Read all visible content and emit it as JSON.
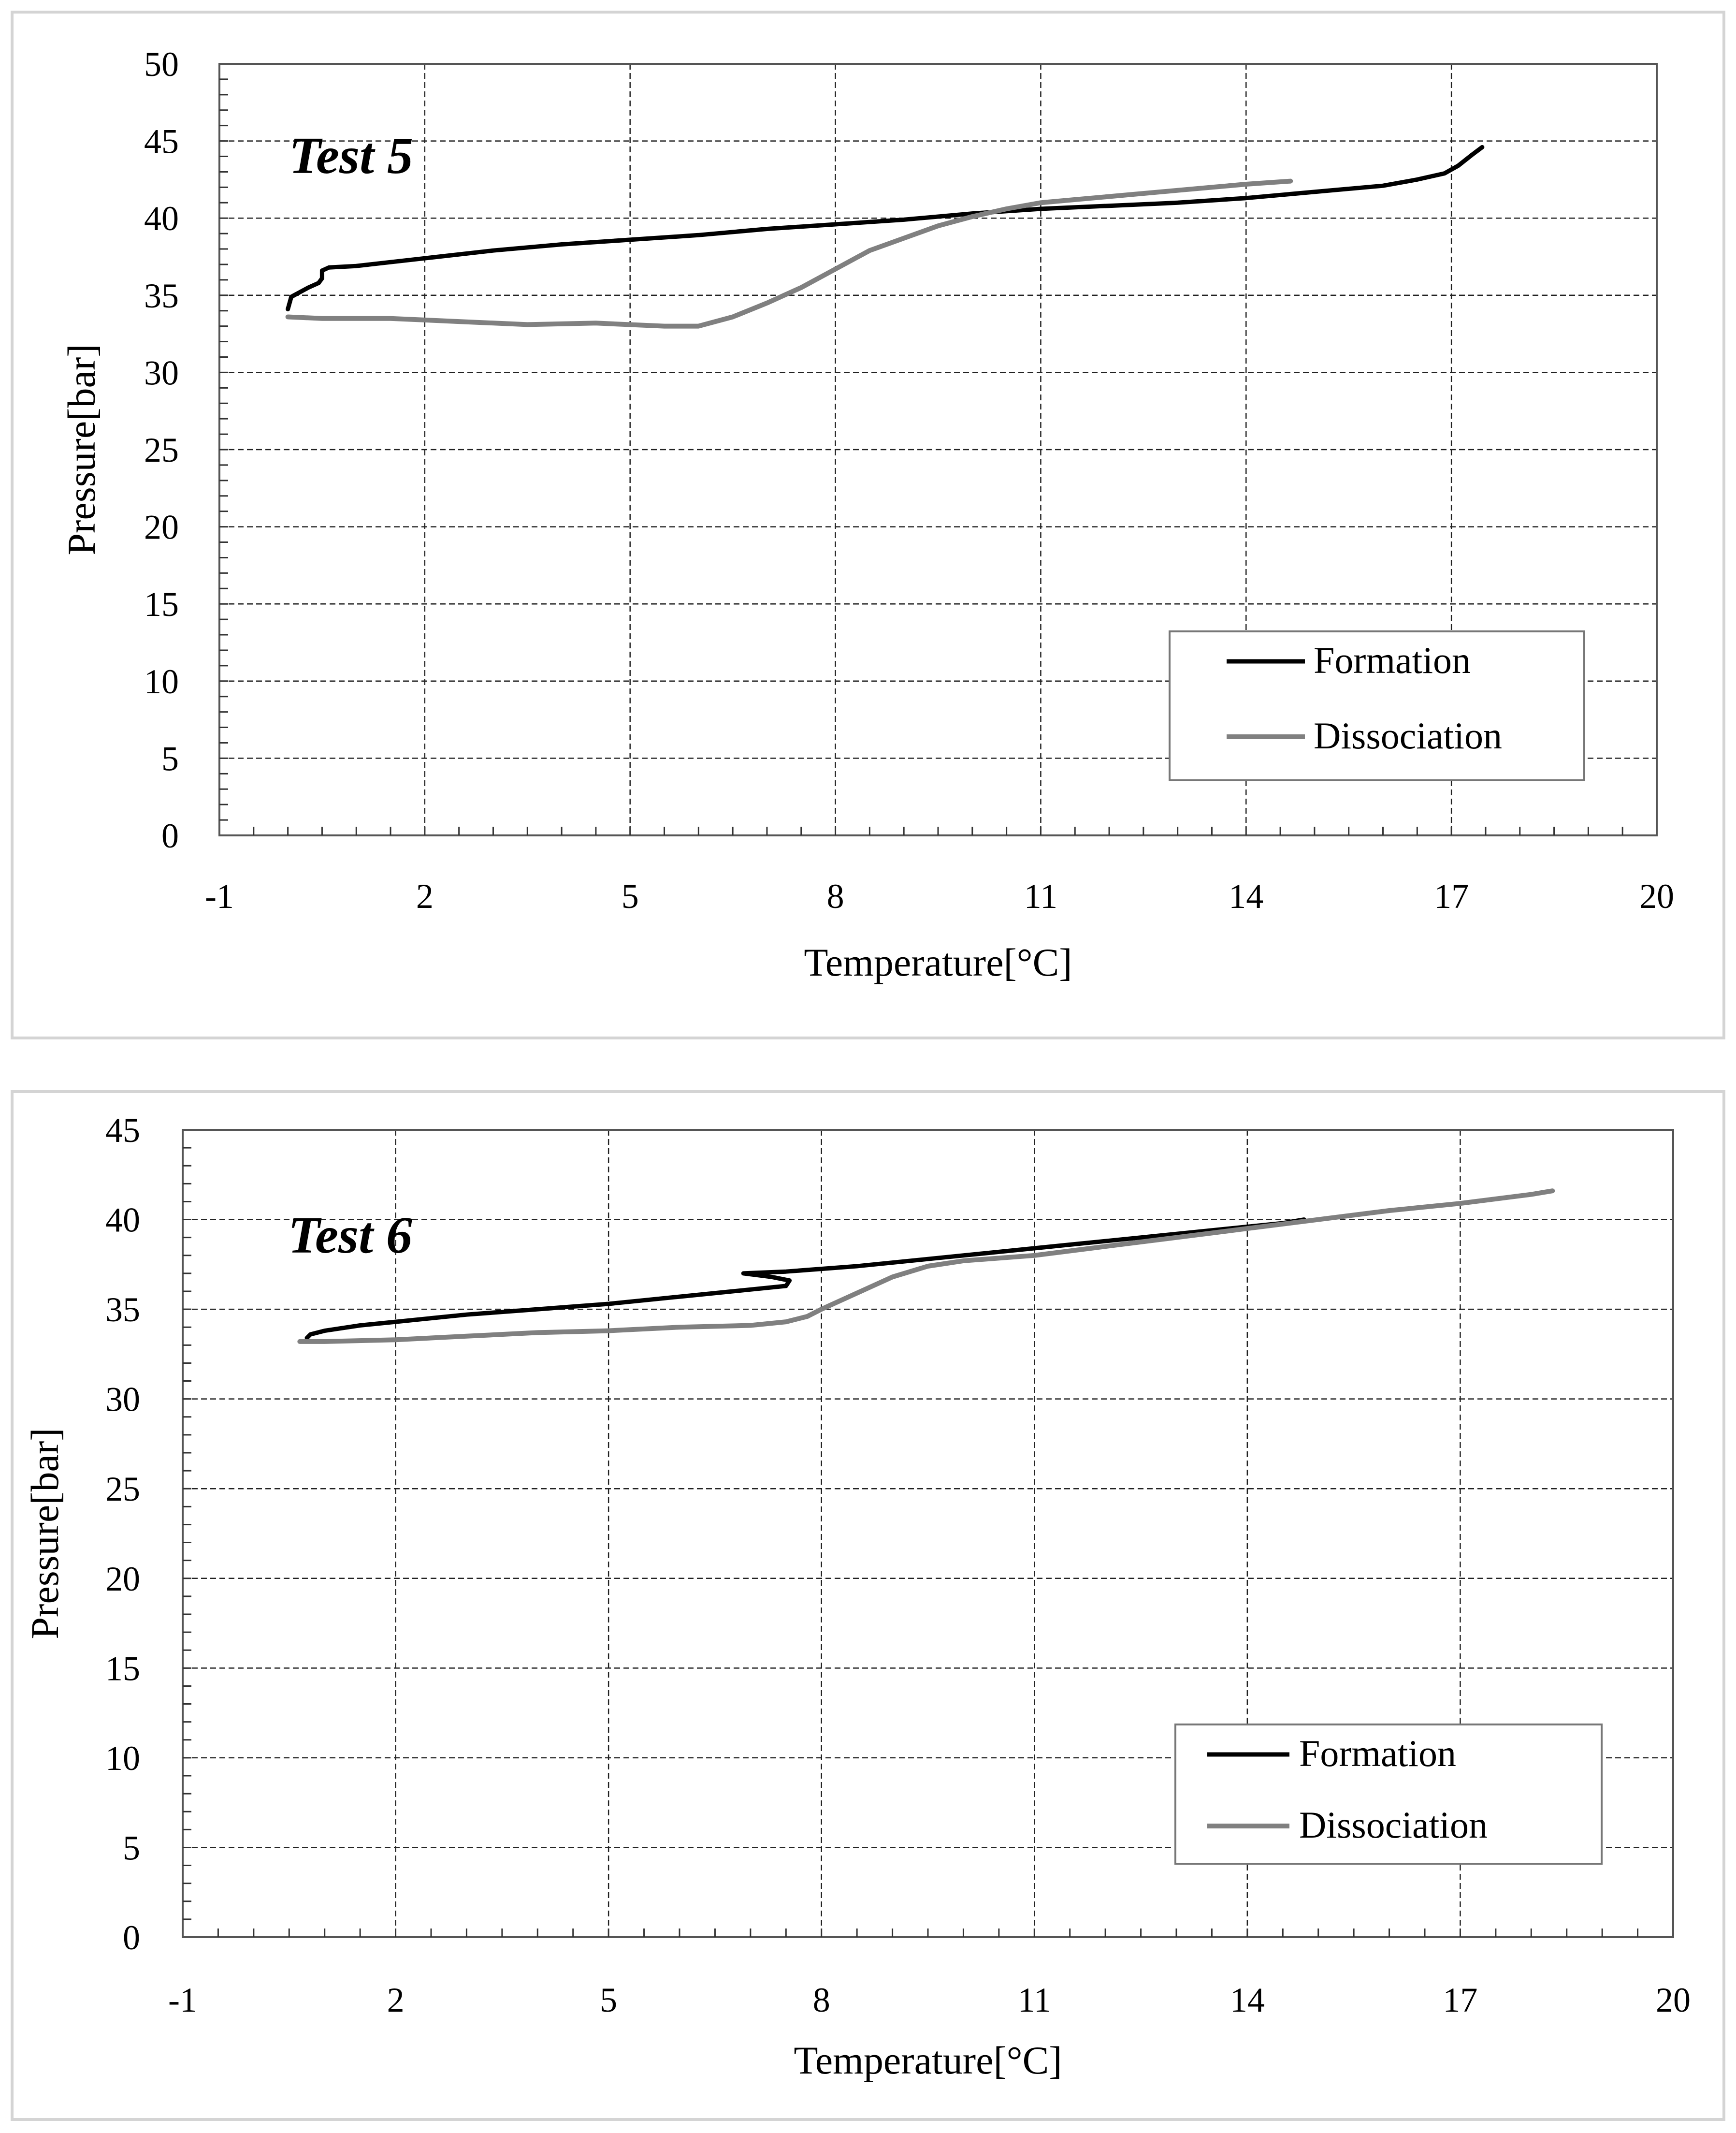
{
  "chart_data": [
    {
      "type": "line",
      "title": "",
      "annotation": "Test 5",
      "xlabel": "Temperature[°C]",
      "ylabel": "Pressure[bar]",
      "xlim": [
        -1,
        20
      ],
      "ylim": [
        0,
        50
      ],
      "x_ticks": [
        -1,
        2,
        5,
        8,
        11,
        14,
        17,
        20
      ],
      "y_ticks": [
        0,
        5,
        10,
        15,
        20,
        25,
        30,
        35,
        40,
        45,
        50
      ],
      "grid": true,
      "legend_position": "bottom-right",
      "series": [
        {
          "name": "Formation",
          "color": "#000000",
          "x": [
            0.0,
            0.05,
            0.3,
            0.45,
            0.5,
            0.5,
            0.6,
            1.0,
            2.0,
            3.0,
            4.0,
            5.0,
            6.0,
            7.0,
            8.0,
            9.0,
            10.0,
            11.0,
            12.0,
            13.0,
            14.0,
            15.0,
            16.0,
            16.5,
            16.9,
            17.1,
            17.3,
            17.45
          ],
          "y": [
            34.1,
            34.9,
            35.5,
            35.8,
            36.1,
            36.6,
            36.8,
            36.9,
            37.4,
            37.9,
            38.3,
            38.6,
            38.9,
            39.3,
            39.6,
            39.9,
            40.3,
            40.6,
            40.8,
            41.0,
            41.3,
            41.7,
            42.1,
            42.5,
            42.9,
            43.4,
            44.1,
            44.6
          ]
        },
        {
          "name": "Dissociation",
          "color": "#808080",
          "x": [
            0.0,
            0.5,
            1.5,
            2.5,
            3.5,
            4.5,
            5.5,
            6.0,
            6.5,
            7.0,
            7.5,
            8.0,
            8.5,
            9.0,
            9.5,
            10.0,
            10.5,
            11.0,
            11.5,
            12.0,
            13.0,
            14.0,
            14.65
          ],
          "y": [
            33.6,
            33.5,
            33.5,
            33.3,
            33.1,
            33.2,
            33.0,
            33.0,
            33.6,
            34.5,
            35.5,
            36.7,
            37.9,
            38.7,
            39.5,
            40.1,
            40.6,
            41.0,
            41.2,
            41.4,
            41.8,
            42.2,
            42.4
          ]
        }
      ]
    },
    {
      "type": "line",
      "title": "",
      "annotation": "Test 6",
      "xlabel": "Temperature[°C]",
      "ylabel": "Pressure[bar]",
      "xlim": [
        -1,
        20
      ],
      "ylim": [
        0,
        45
      ],
      "x_ticks": [
        -1,
        2,
        5,
        8,
        11,
        14,
        17,
        20
      ],
      "y_ticks": [
        0,
        5,
        10,
        15,
        20,
        25,
        30,
        35,
        40,
        45
      ],
      "grid": true,
      "legend_position": "bottom-right",
      "series": [
        {
          "name": "Formation",
          "color": "#000000",
          "x": [
            0.75,
            0.8,
            1.0,
            1.5,
            2.0,
            3.0,
            4.0,
            5.0,
            6.0,
            7.0,
            7.5,
            7.55,
            7.3,
            6.9,
            7.5,
            8.5,
            9.5,
            10.5,
            11.5,
            12.5,
            13.5,
            14.5,
            14.8
          ],
          "y": [
            33.4,
            33.6,
            33.8,
            34.1,
            34.3,
            34.7,
            35.0,
            35.3,
            35.7,
            36.1,
            36.3,
            36.6,
            36.8,
            37.0,
            37.1,
            37.4,
            37.8,
            38.2,
            38.6,
            39.0,
            39.4,
            39.8,
            40.0
          ]
        },
        {
          "name": "Dissociation",
          "color": "#808080",
          "x": [
            0.65,
            1.0,
            2.0,
            3.0,
            4.0,
            5.0,
            6.0,
            7.0,
            7.5,
            7.8,
            8.0,
            8.5,
            9.0,
            9.5,
            10.0,
            11.0,
            12.0,
            13.0,
            14.0,
            15.0,
            16.0,
            17.0,
            18.0,
            18.3
          ],
          "y": [
            33.2,
            33.2,
            33.3,
            33.5,
            33.7,
            33.8,
            34.0,
            34.1,
            34.3,
            34.6,
            35.0,
            35.9,
            36.8,
            37.4,
            37.7,
            38.0,
            38.5,
            39.0,
            39.5,
            40.0,
            40.5,
            40.9,
            41.4,
            41.6
          ]
        }
      ]
    }
  ]
}
